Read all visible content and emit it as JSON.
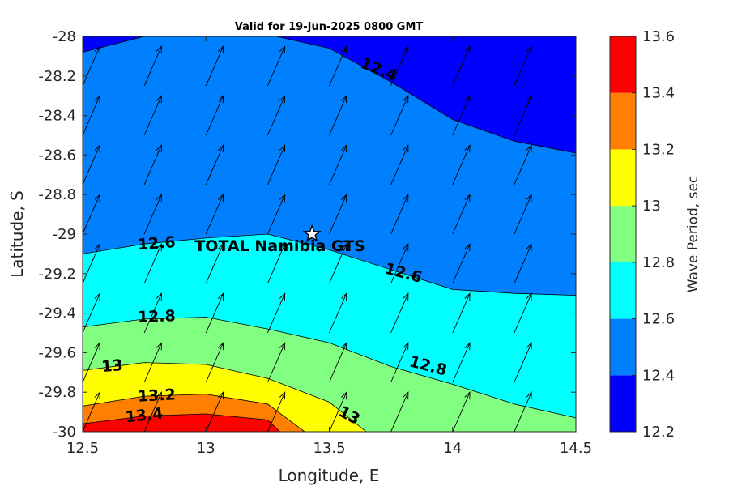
{
  "chart_data": {
    "type": "contour",
    "title": "Valid for 19-Jun-2025 0800 GMT",
    "xlabel": "Longitude, E",
    "ylabel": "Latitude, S",
    "xlim": [
      12.5,
      14.5
    ],
    "ylim": [
      -30,
      -28
    ],
    "x_ticks": [
      "12.5",
      "13",
      "13.5",
      "14",
      "14.5"
    ],
    "y_ticks": [
      "-28",
      "-28.2",
      "-28.4",
      "-28.6",
      "-28.8",
      "-29",
      "-29.2",
      "-29.4",
      "-29.6",
      "-29.8",
      "-30"
    ],
    "colorbar": {
      "label": "Wave Period, sec",
      "range": [
        12.2,
        13.6
      ],
      "ticks": [
        "13.6",
        "13.4",
        "13.2",
        "13",
        "12.8",
        "12.6",
        "12.4",
        "12.2"
      ],
      "colors": [
        "#0000ff",
        "#0080ff",
        "#00ffff",
        "#80ff80",
        "#ffff00",
        "#ff8000",
        "#ff0000"
      ]
    },
    "contours": [
      {
        "level": 12.4,
        "label": "12.4",
        "points": [
          [
            12.5,
            -28.08
          ],
          [
            12.75,
            -28.0
          ],
          [
            13.0,
            -27.99
          ],
          [
            13.25,
            -27.99
          ],
          [
            13.5,
            -28.06
          ],
          [
            13.75,
            -28.23
          ],
          [
            14.0,
            -28.42
          ],
          [
            14.25,
            -28.53
          ],
          [
            14.5,
            -28.59
          ]
        ]
      },
      {
        "level": 12.6,
        "label": "12.6",
        "points": [
          [
            12.5,
            -29.1
          ],
          [
            12.75,
            -29.05
          ],
          [
            13.0,
            -29.02
          ],
          [
            13.25,
            -29.0
          ],
          [
            13.5,
            -29.08
          ],
          [
            13.75,
            -29.18
          ],
          [
            14.0,
            -29.28
          ],
          [
            14.25,
            -29.3
          ],
          [
            14.5,
            -29.31
          ]
        ]
      },
      {
        "level": 12.8,
        "label": "12.8",
        "points": [
          [
            12.5,
            -29.47
          ],
          [
            12.75,
            -29.43
          ],
          [
            13.0,
            -29.42
          ],
          [
            13.25,
            -29.48
          ],
          [
            13.5,
            -29.55
          ],
          [
            13.75,
            -29.67
          ],
          [
            14.0,
            -29.76
          ],
          [
            14.25,
            -29.86
          ],
          [
            14.5,
            -29.93
          ]
        ]
      },
      {
        "level": 13.0,
        "label": "13",
        "points": [
          [
            12.5,
            -29.69
          ],
          [
            12.75,
            -29.65
          ],
          [
            13.0,
            -29.66
          ],
          [
            13.25,
            -29.73
          ],
          [
            13.5,
            -29.85
          ],
          [
            13.65,
            -30.0
          ]
        ]
      },
      {
        "level": 13.2,
        "label": "13.2",
        "points": [
          [
            12.5,
            -29.87
          ],
          [
            12.75,
            -29.82
          ],
          [
            13.0,
            -29.81
          ],
          [
            13.25,
            -29.86
          ],
          [
            13.4,
            -30.0
          ]
        ]
      },
      {
        "level": 13.4,
        "label": "13.4",
        "points": [
          [
            12.5,
            -29.96
          ],
          [
            12.75,
            -29.92
          ],
          [
            13.0,
            -29.91
          ],
          [
            13.25,
            -29.94
          ],
          [
            13.3,
            -30.0
          ]
        ]
      }
    ],
    "contour_labels": [
      {
        "text": "12.4",
        "lon": 13.7,
        "lat": -28.17,
        "angle": 22
      },
      {
        "text": "12.6",
        "lon": 12.8,
        "lat": -29.05,
        "angle": -4
      },
      {
        "text": "12.6",
        "lon": 13.8,
        "lat": -29.2,
        "angle": 15
      },
      {
        "text": "12.8",
        "lon": 12.8,
        "lat": -29.42,
        "angle": -2
      },
      {
        "text": "12.8",
        "lon": 13.9,
        "lat": -29.67,
        "angle": 15
      },
      {
        "text": "13",
        "lon": 12.62,
        "lat": -29.67,
        "angle": -5
      },
      {
        "text": "13.2",
        "lon": 12.8,
        "lat": -29.82,
        "angle": -3
      },
      {
        "text": "13.4",
        "lon": 12.75,
        "lat": -29.92,
        "angle": -6
      },
      {
        "text": "13",
        "lon": 13.58,
        "lat": -29.92,
        "angle": 28
      }
    ],
    "site": {
      "name": "TOTAL Namibia GTS",
      "lon": 13.43,
      "lat": -29.0
    },
    "arrows": {
      "lon_start": 12.5,
      "lon_step": 0.25,
      "lat_start": -30.0,
      "lat_step": 0.25,
      "dx": 0.07,
      "dy": 0.2
    }
  }
}
